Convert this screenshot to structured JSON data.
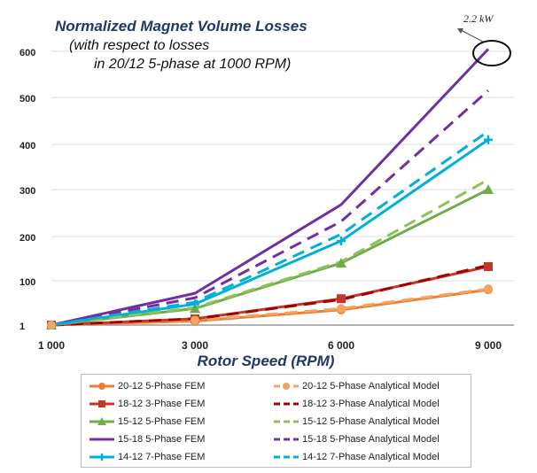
{
  "chart_data": {
    "type": "line",
    "title": "Normalized Magnet Volume Losses",
    "subtitle_lines": [
      "(with respect to losses",
      "in 20/12  5-phase at 1000 RPM)"
    ],
    "xlabel": "Rotor Speed (RPM)",
    "ylabel": "",
    "x": [
      1000,
      3000,
      6000,
      9000
    ],
    "x_tick_labels": [
      "1 000",
      "3 000",
      "6 000",
      "9 000"
    ],
    "y_ticks": [
      1,
      100,
      200,
      300,
      400,
      500,
      600
    ],
    "y_tick_labels": [
      "1",
      "100",
      "200",
      "300",
      "400",
      "500",
      "600"
    ],
    "ylim": [
      1,
      600
    ],
    "grid": "horizontal",
    "legend_position": "bottom",
    "annotation": "2.2  kW",
    "series": [
      {
        "name": "20-12   5-Phase FEM",
        "style": "solid",
        "marker": "circle",
        "color": "#ed7d31",
        "values": [
          1,
          10,
          35,
          80
        ]
      },
      {
        "name": "20-12   5-Phase Analytical Model",
        "style": "dashed",
        "marker": "circle",
        "color": "#f4a460",
        "values": [
          1,
          12,
          38,
          82
        ]
      },
      {
        "name": "18-12   3-Phase FEM",
        "style": "solid",
        "marker": "square",
        "color": "#c0392b",
        "values": [
          1,
          15,
          60,
          132
        ]
      },
      {
        "name": "18-12   3-Phase Analytical Model",
        "style": "dashed",
        "marker": "none",
        "color": "#a30000",
        "values": [
          1,
          15,
          58,
          135
        ]
      },
      {
        "name": "15-12   5-Phase FEM",
        "style": "solid",
        "marker": "triangle",
        "color": "#70ad47",
        "values": [
          1,
          38,
          140,
          300
        ]
      },
      {
        "name": "15-12   5-Phase Analytical Model",
        "style": "dashed",
        "marker": "none",
        "color": "#8fc15a",
        "values": [
          1,
          40,
          143,
          322
        ]
      },
      {
        "name": "15-18   5-Phase FEM",
        "style": "solid",
        "marker": "none",
        "color": "#7030a0",
        "values": [
          1,
          72,
          268,
          605
        ]
      },
      {
        "name": "15-18   5-Phase Analytical Model",
        "style": "dashed",
        "marker": "none",
        "color": "#7030a0",
        "values": [
          1,
          62,
          232,
          515
        ]
      },
      {
        "name": "14-12   7-Phase FEM",
        "style": "solid",
        "marker": "cross",
        "color": "#00b0d8",
        "values": [
          1,
          48,
          190,
          410
        ]
      },
      {
        "name": "14-12   7-Phase Analytical Model",
        "style": "dashed",
        "marker": "none",
        "color": "#00b0d8",
        "values": [
          1,
          52,
          205,
          428
        ]
      }
    ]
  }
}
